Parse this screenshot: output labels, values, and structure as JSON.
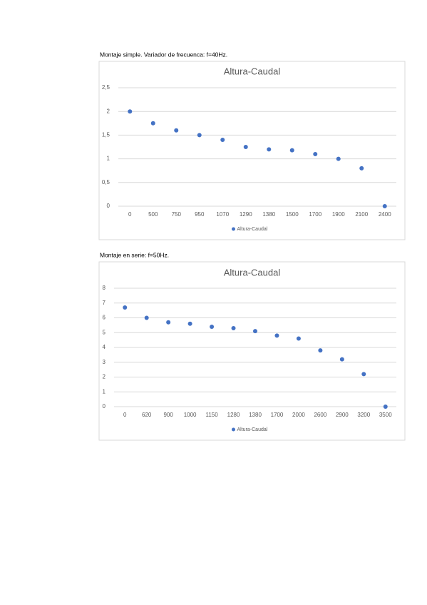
{
  "chart_data": [
    {
      "type": "scatter",
      "heading": "Montaje simple. Variador de frecuenca: f=40Hz.",
      "title": "Altura-Caudal",
      "categories": [
        "0",
        "500",
        "750",
        "950",
        "1070",
        "1290",
        "1380",
        "1500",
        "1700",
        "1900",
        "2100",
        "2400"
      ],
      "series": [
        {
          "name": "Altura-Caudal",
          "color": "#4472c4",
          "values": [
            2,
            1.75,
            1.6,
            1.5,
            1.4,
            1.25,
            1.2,
            1.18,
            1.1,
            1,
            0.8,
            0
          ]
        }
      ],
      "ylim": [
        0,
        2.5
      ],
      "yticks": [
        0,
        {
          "value": 0.5,
          "label": "0,5"
        },
        1,
        {
          "value": 1.5,
          "label": "1,5"
        },
        2,
        {
          "value": 2.5,
          "label": "2,5"
        }
      ],
      "grid": true,
      "legend": "bottom"
    },
    {
      "type": "scatter",
      "heading": "Montaje en serie: f=50Hz.",
      "title": "Altura-Caudal",
      "categories": [
        "0",
        "620",
        "900",
        "1000",
        "1150",
        "1280",
        "1380",
        "1700",
        "2000",
        "2600",
        "2900",
        "3200",
        "3500"
      ],
      "series": [
        {
          "name": "Altura-Caudal",
          "color": "#4472c4",
          "values": [
            6.7,
            6,
            5.7,
            5.6,
            5.4,
            5.3,
            5.1,
            4.8,
            4.6,
            3.8,
            3.2,
            2.2,
            0
          ]
        }
      ],
      "ylim": [
        0,
        8
      ],
      "yticks": [
        0,
        1,
        2,
        3,
        4,
        5,
        6,
        7,
        8
      ],
      "grid": true,
      "legend": "bottom"
    }
  ]
}
